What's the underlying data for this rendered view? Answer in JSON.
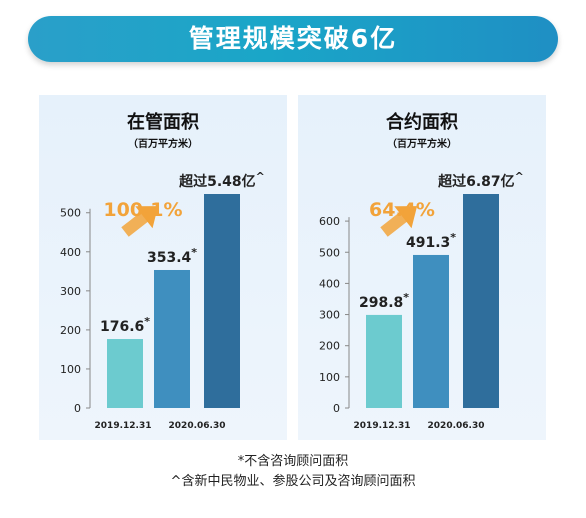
{
  "banner": {
    "title": "管理规模突破6亿"
  },
  "footnotes": [
    "*不含咨询顾问面积",
    "^含新中民物业、参股公司及咨询顾问面积"
  ],
  "colors": {
    "banner": "#1aa6c8",
    "bar_2019": "#6ccbcf",
    "bar_mid": "#3f8fbf",
    "bar_latest": "#2f6e9c",
    "arrow": "#f2a33a",
    "growth_text": "#f2a33a"
  },
  "chart_data": [
    {
      "type": "bar",
      "title": "在管面积",
      "subtitle": "（百万平方米）",
      "categories": [
        "2019.12.31",
        "2020.06.30"
      ],
      "bars": [
        {
          "category": "2019.12.31",
          "value": 176.6,
          "label": "176.6",
          "mark": "*",
          "color": "#6ccbcf"
        },
        {
          "category": "2020.06.30",
          "value": 353.4,
          "label": "353.4",
          "mark": "*",
          "color": "#3f8fbf"
        },
        {
          "category": "2020.06.30",
          "value": 548,
          "label": "超过5.48亿",
          "mark": "^",
          "color": "#2f6e9c"
        }
      ],
      "growth": "100.1%",
      "ylim": [
        0,
        548
      ],
      "yticks": [
        0,
        100,
        200,
        300,
        400,
        500
      ],
      "grid": false
    },
    {
      "type": "bar",
      "title": "合约面积",
      "subtitle": "（百万平方米）",
      "categories": [
        "2019.12.31",
        "2020.06.30"
      ],
      "bars": [
        {
          "category": "2019.12.31",
          "value": 298.8,
          "label": "298.8",
          "mark": "*",
          "color": "#6ccbcf"
        },
        {
          "category": "2020.06.30",
          "value": 491.3,
          "label": "491.3",
          "mark": "*",
          "color": "#3f8fbf"
        },
        {
          "category": "2020.06.30",
          "value": 687,
          "label": "超过6.87亿",
          "mark": "^",
          "color": "#2f6e9c"
        }
      ],
      "growth": "64.4%",
      "ylim": [
        0,
        687
      ],
      "yticks": [
        0,
        100,
        200,
        300,
        400,
        500,
        600
      ],
      "grid": false
    }
  ]
}
